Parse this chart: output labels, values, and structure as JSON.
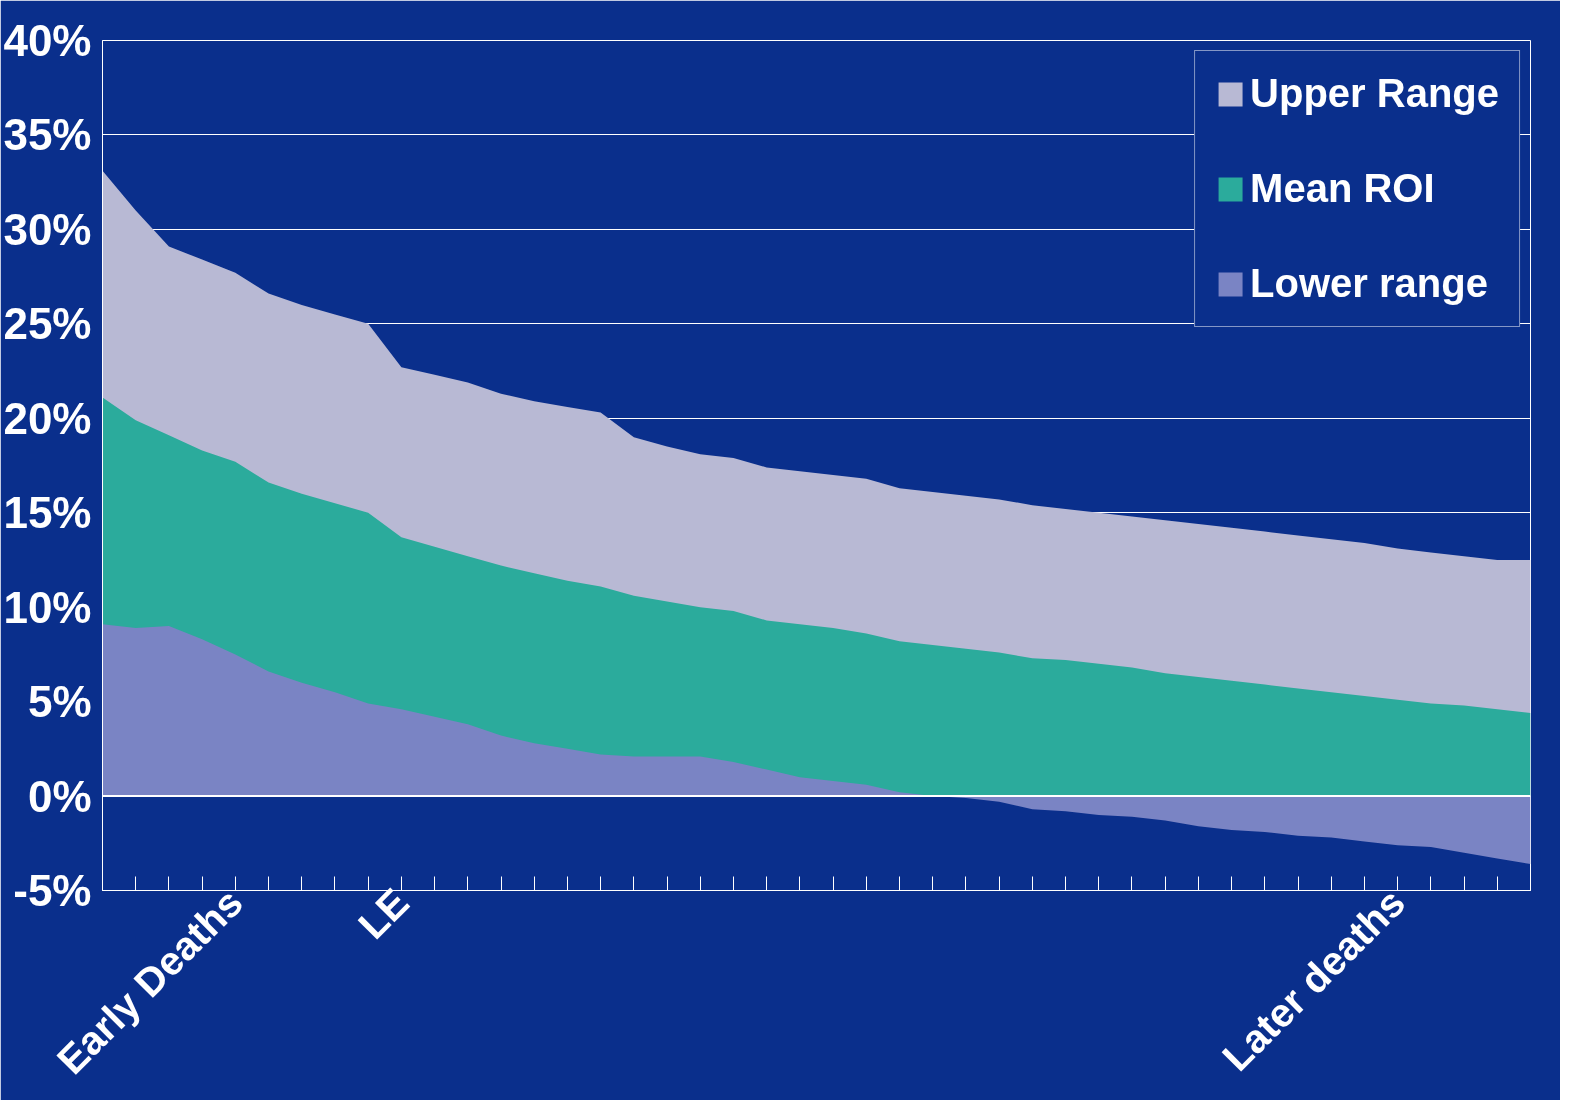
{
  "chart_data": {
    "type": "area",
    "categories": [
      null,
      null,
      null,
      null,
      "Early Deaths",
      null,
      null,
      null,
      null,
      "LE",
      null,
      null,
      null,
      null,
      null,
      null,
      null,
      null,
      null,
      null,
      null,
      null,
      null,
      null,
      null,
      null,
      null,
      null,
      null,
      null,
      null,
      null,
      null,
      null,
      null,
      null,
      null,
      null,
      null,
      "Later deaths",
      null,
      null,
      null,
      null
    ],
    "series": [
      {
        "name": "Upper Range",
        "color": "#b8b9d4",
        "values": [
          33.1,
          31.0,
          29.1,
          28.4,
          27.7,
          26.6,
          26.0,
          25.5,
          25.0,
          22.7,
          22.3,
          21.9,
          21.3,
          20.9,
          20.6,
          20.3,
          19.0,
          18.5,
          18.1,
          17.9,
          17.4,
          17.2,
          17.0,
          16.8,
          16.3,
          16.1,
          15.9,
          15.7,
          15.4,
          15.2,
          15.0,
          14.8,
          14.6,
          14.4,
          14.2,
          14.0,
          13.8,
          13.6,
          13.4,
          13.1,
          12.9,
          12.7,
          12.5,
          12.5
        ]
      },
      {
        "name": "Mean ROI",
        "color": "#2bab9c",
        "values": [
          21.1,
          19.9,
          19.1,
          18.3,
          17.7,
          16.6,
          16.0,
          15.5,
          15.0,
          13.7,
          13.2,
          12.7,
          12.2,
          11.8,
          11.4,
          11.1,
          10.6,
          10.3,
          10.0,
          9.8,
          9.3,
          9.1,
          8.9,
          8.6,
          8.2,
          8.0,
          7.8,
          7.6,
          7.3,
          7.2,
          7.0,
          6.8,
          6.5,
          6.3,
          6.1,
          5.9,
          5.7,
          5.5,
          5.3,
          5.1,
          4.9,
          4.8,
          4.6,
          4.4
        ]
      },
      {
        "name": "Lower range",
        "color": "#7a84c4",
        "values": [
          9.1,
          8.9,
          9.0,
          8.3,
          7.5,
          6.6,
          6.0,
          5.5,
          4.9,
          4.6,
          4.2,
          3.8,
          3.2,
          2.8,
          2.5,
          2.2,
          2.1,
          2.1,
          2.1,
          1.8,
          1.4,
          1.0,
          0.8,
          0.6,
          0.2,
          0.0,
          -0.1,
          -0.3,
          -0.7,
          -0.8,
          -1.0,
          -1.1,
          -1.3,
          -1.6,
          -1.8,
          -1.9,
          -2.1,
          -2.2,
          -2.4,
          -2.6,
          -2.7,
          -3.0,
          -3.3,
          -3.6
        ]
      }
    ],
    "ylim": [
      -5,
      40
    ],
    "yticks": [
      {
        "value": -5,
        "label": "-5%"
      },
      {
        "value": 0,
        "label": "0%"
      },
      {
        "value": 5,
        "label": "5%"
      },
      {
        "value": 10,
        "label": "10%"
      },
      {
        "value": 15,
        "label": "15%"
      },
      {
        "value": 20,
        "label": "20%"
      },
      {
        "value": 25,
        "label": "25%"
      },
      {
        "value": 30,
        "label": "30%"
      },
      {
        "value": 35,
        "label": "35%"
      },
      {
        "value": 40,
        "label": "40%"
      }
    ],
    "grid": "y",
    "legend": "top right"
  }
}
